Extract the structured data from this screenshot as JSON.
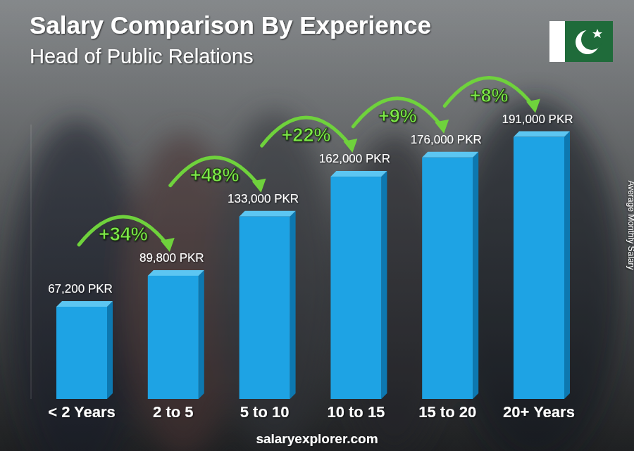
{
  "chart_data": {
    "type": "bar",
    "title": "Salary Comparison By Experience",
    "subtitle": "Head of Public Relations",
    "y_label": "Average Monthly Salary",
    "source": "salaryexplorer.com",
    "categories": [
      "< 2 Years",
      "2 to 5",
      "5 to 10",
      "10 to 15",
      "15 to 20",
      "20+ Years"
    ],
    "values": [
      67200,
      89800,
      133000,
      162000,
      176000,
      191000
    ],
    "value_labels": [
      "67,200 PKR",
      "89,800 PKR",
      "133,000 PKR",
      "162,000 PKR",
      "176,000 PKR",
      "191,000 PKR"
    ],
    "annotations": [
      "+34%",
      "+48%",
      "+22%",
      "+9%",
      "+8%"
    ],
    "color": "#1ea3e4",
    "ylim": [
      0,
      200000
    ],
    "data_labels": true,
    "tick_labels": "x"
  }
}
